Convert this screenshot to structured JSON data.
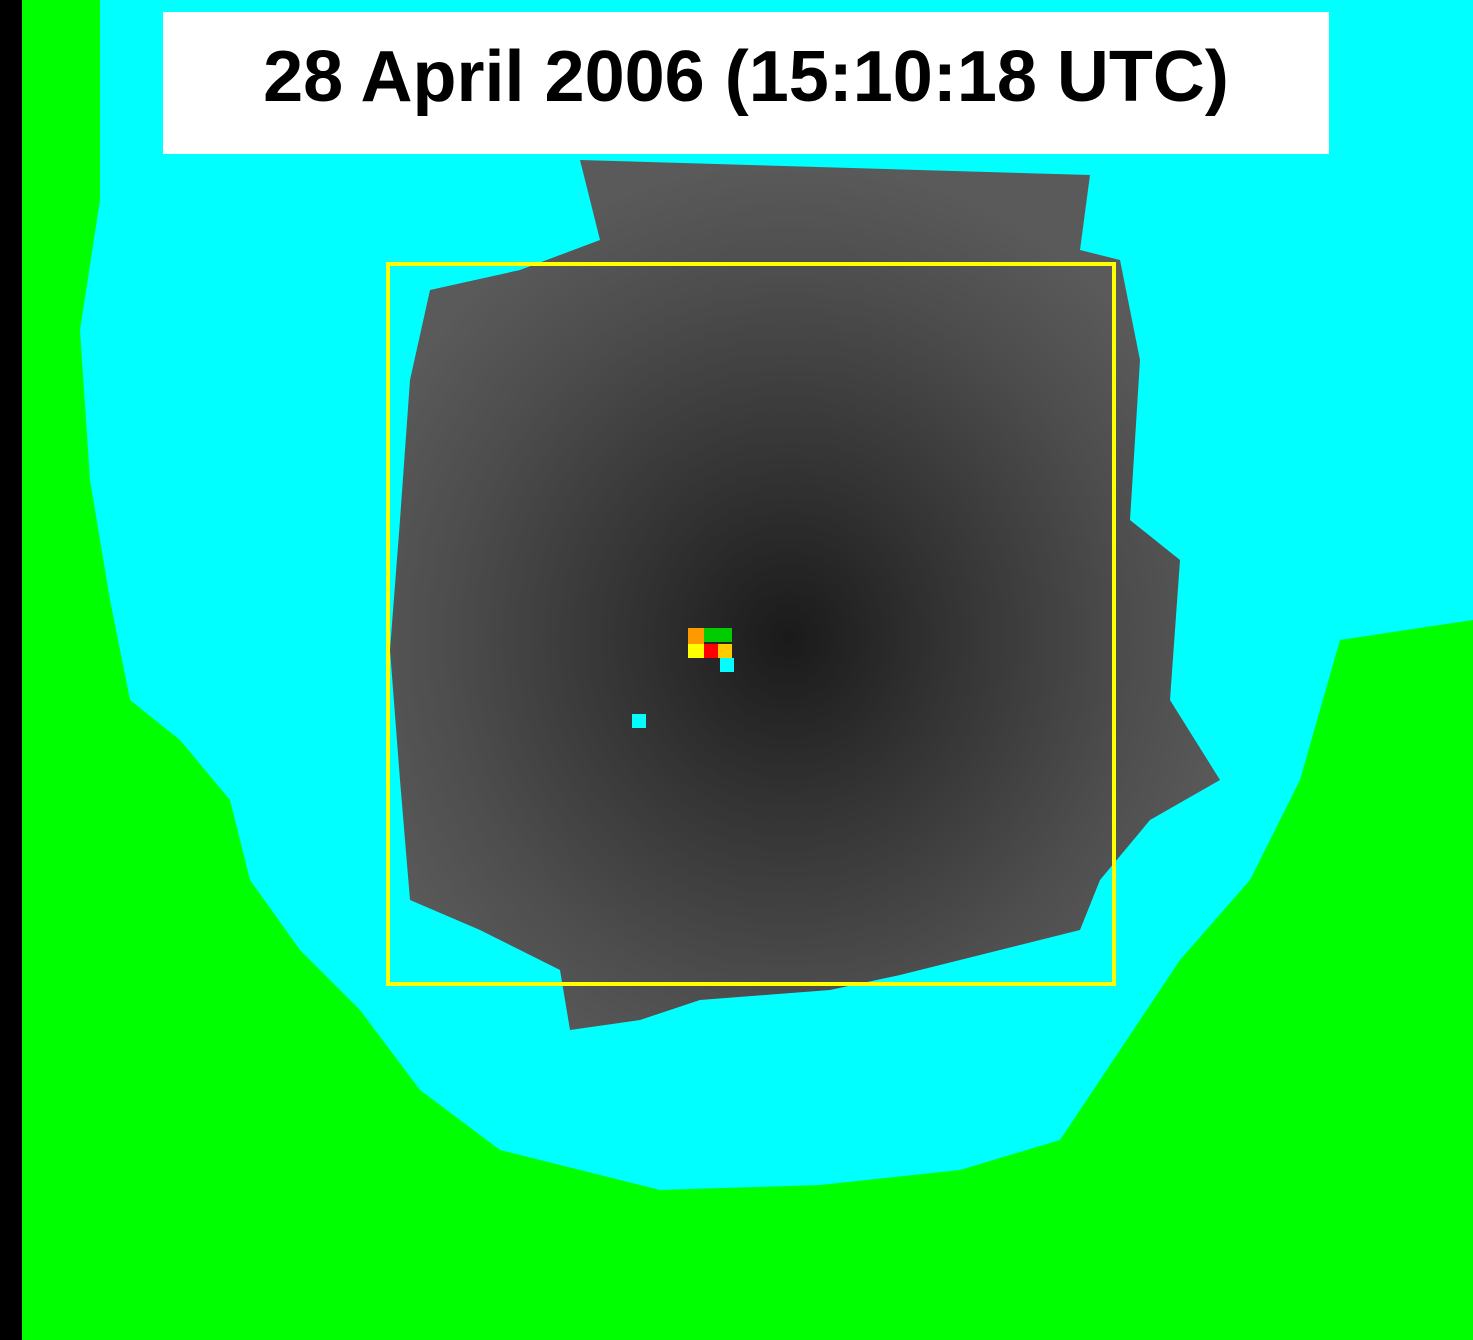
{
  "title": "28 April 2006 (15:10:18 UTC)"
}
